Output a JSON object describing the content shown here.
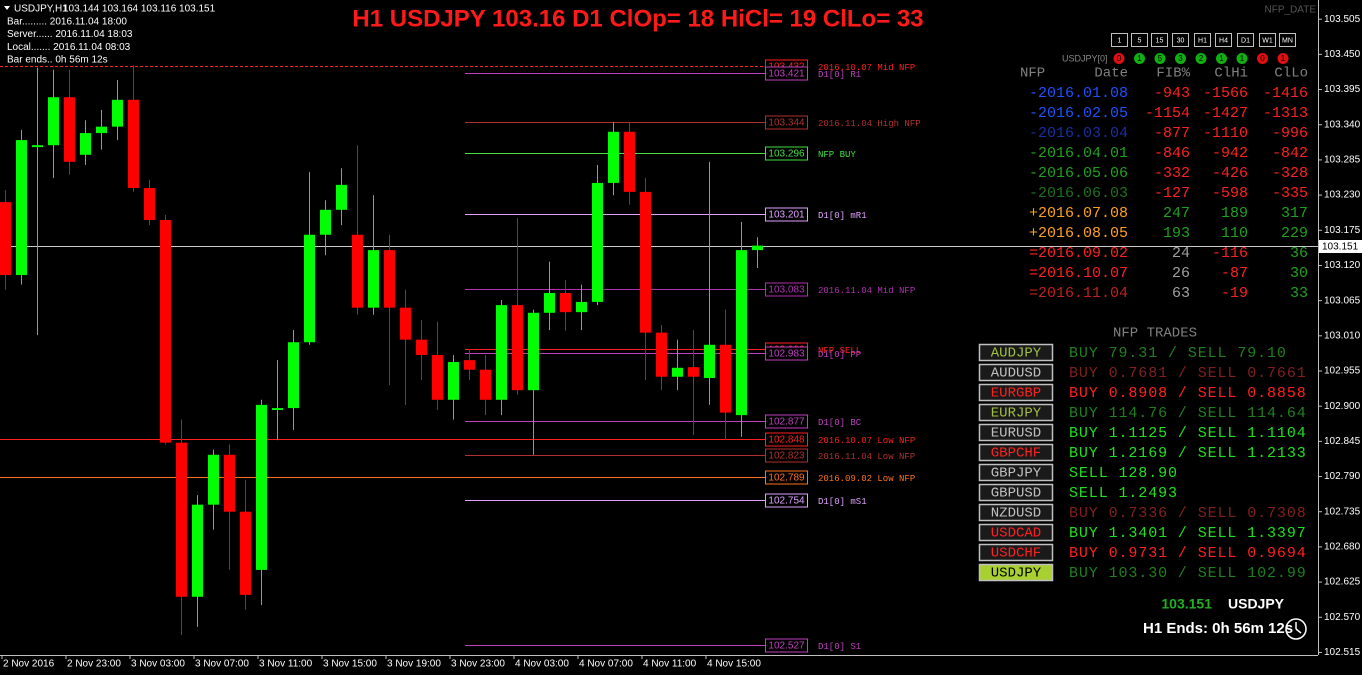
{
  "chart_data": {
    "type": "candlestick",
    "title": "H1 USDJPY 103.16 D1 ClOp= 18 HiCl= 19 ClLo= 33",
    "categories": [
      "2 Nov 2016",
      null,
      null,
      null,
      "2 Nov 23:00",
      null,
      null,
      null,
      "3 Nov 03:00",
      null,
      null,
      null,
      "3 Nov 07:00",
      null,
      null,
      null,
      "3 Nov 11:00",
      null,
      null,
      null,
      "3 Nov 15:00",
      null,
      null,
      null,
      "3 Nov 19:00",
      null,
      null,
      null,
      "3 Nov 23:00",
      null,
      null,
      null,
      "4 Nov 03:00",
      null,
      null,
      null,
      "4 Nov 07:00",
      null,
      null,
      null,
      "4 Nov 11:00",
      null,
      null,
      null,
      "4 Nov 15:00",
      null,
      null,
      null
    ],
    "open": [
      103.219,
      103.105,
      103.305,
      103.308,
      103.383,
      103.293,
      103.327,
      103.337,
      103.379,
      103.241,
      103.191,
      102.843,
      102.602,
      102.746,
      102.824,
      102.735,
      102.644,
      102.894,
      102.897,
      103.0,
      103.168,
      103.207,
      103.168,
      103.054,
      103.144,
      103.054,
      103.004,
      102.98,
      102.91,
      102.972,
      102.957,
      102.91,
      103.058,
      102.925,
      103.046,
      103.077,
      103.047,
      103.063,
      103.249,
      103.329,
      103.235,
      103.015,
      102.946,
      102.961,
      102.944,
      102.996,
      102.886,
      103.144
    ],
    "high": [
      103.238,
      103.332,
      103.429,
      103.426,
      103.426,
      103.347,
      103.363,
      103.41,
      103.433,
      103.254,
      103.199,
      102.879,
      102.761,
      102.832,
      102.84,
      102.785,
      102.91,
      102.972,
      103.019,
      103.266,
      103.222,
      103.272,
      103.308,
      103.23,
      103.168,
      103.082,
      103.035,
      103.032,
      102.98,
      102.988,
      102.98,
      103.066,
      103.194,
      103.051,
      103.126,
      103.097,
      103.09,
      103.277,
      103.344,
      103.344,
      103.257,
      103.027,
      103.004,
      103.019,
      103.282,
      103.051,
      103.188,
      103.164
    ],
    "low": [
      103.082,
      103.09,
      103.011,
      103.257,
      103.262,
      103.277,
      103.301,
      103.316,
      103.235,
      103.183,
      102.84,
      102.542,
      102.555,
      102.707,
      102.644,
      102.582,
      102.589,
      102.847,
      102.863,
      102.996,
      103.136,
      103.183,
      103.043,
      103.043,
      102.933,
      102.902,
      102.941,
      102.894,
      102.879,
      102.941,
      102.886,
      102.886,
      102.918,
      102.824,
      103.019,
      103.018,
      103.019,
      103.058,
      103.23,
      103.215,
      102.941,
      102.925,
      102.925,
      102.855,
      102.902,
      102.847,
      102.852,
      103.116
    ],
    "close": [
      103.105,
      103.316,
      103.308,
      103.383,
      103.282,
      103.327,
      103.337,
      103.379,
      103.241,
      103.191,
      102.843,
      102.602,
      102.746,
      102.824,
      102.735,
      102.605,
      102.902,
      102.897,
      103.0,
      103.168,
      103.207,
      103.246,
      103.054,
      103.144,
      103.054,
      103.004,
      102.98,
      102.91,
      102.969,
      102.957,
      102.91,
      103.058,
      102.925,
      103.046,
      103.077,
      103.047,
      103.063,
      103.249,
      103.329,
      103.235,
      103.015,
      102.946,
      102.96,
      102.946,
      102.996,
      102.89,
      103.144,
      103.151
    ],
    "up_color": "#00ff00",
    "down_color": "#ff0000",
    "ylim": [
      102.511,
      103.535
    ],
    "yticks": [
      103.505,
      {
        "value": 103.45,
        "label": "103.450"
      },
      103.395,
      {
        "value": 103.34,
        "label": "103.340"
      },
      103.285,
      {
        "value": 103.23,
        "label": "103.230"
      },
      103.175,
      {
        "value": 103.12,
        "label": "103.120"
      },
      103.065,
      {
        "value": 103.01,
        "label": "103.010"
      },
      102.955,
      {
        "value": 102.9,
        "label": "102.900"
      },
      102.845,
      {
        "value": 102.79,
        "label": "102.790"
      },
      102.735,
      {
        "value": 102.68,
        "label": "102.680"
      },
      102.625,
      {
        "value": 102.57,
        "label": "102.570"
      },
      102.515
    ],
    "bid": 103.151,
    "bid_color": "#c8c8c8",
    "levels": [
      {
        "value": 103.432,
        "text": "2016.10.07 Mid NFP",
        "color": "#ff2020",
        "extent": "full",
        "style": "dash"
      },
      {
        "value": 103.421,
        "text": "D1[0] R1",
        "color": "#c040c0",
        "extent": "segment"
      },
      {
        "value": 103.344,
        "text": "2016.11.04 High NFP",
        "color": "#b03030",
        "extent": "segment"
      },
      {
        "value": 103.296,
        "text": "NFP BUY",
        "color": "#40e040",
        "extent": "segment"
      },
      {
        "value": 103.201,
        "text": "D1[0] mR1",
        "color": "#e0a0ff",
        "extent": "segment"
      },
      {
        "value": 103.083,
        "text": "2016.11.04 Mid NFP",
        "color": "#b030b0",
        "extent": "segment"
      },
      {
        "value": 102.99,
        "label": "102.990",
        "text": "NFP SELL",
        "color": "#ff2020",
        "extent": "segment"
      },
      {
        "value": 102.983,
        "text": "D1[0] PP",
        "color": "#c040c0",
        "extent": "segment"
      },
      {
        "value": 102.877,
        "text": "D1[0] BC",
        "color": "#c040c0",
        "extent": "segment"
      },
      {
        "value": 102.848,
        "text": "2016.10.07 Low NFP",
        "color": "#ff2020",
        "extent": "full"
      },
      {
        "value": 102.823,
        "text": "2016.11.04 Low NFP",
        "color": "#b03030",
        "extent": "segment"
      },
      {
        "value": 102.789,
        "text": "2016.09.02 Low NFP",
        "color": "#ff7020",
        "extent": "full"
      },
      {
        "value": 102.754,
        "text": "D1[0] mS1",
        "color": "#e0a0ff",
        "extent": "segment"
      },
      {
        "value": 102.527,
        "text": "D1[0] S1",
        "color": "#c040c0",
        "extent": "segment"
      }
    ]
  },
  "info": {
    "symbol": "USDJPY,H1",
    "ohlc": "103.144 103.164 103.116 103.151",
    "lines": [
      "Bar......... 2016.11.04 18:00",
      "Server...... 2016.11.04 18:03",
      "Local....... 2016.11.04 08:03",
      "Bar ends.. 0h 56m 12s"
    ]
  },
  "indicator_name": "NFP_DATE",
  "timeframes": [
    "1",
    "5",
    "15",
    "30",
    "H1",
    "H4",
    "D1",
    "W1",
    "MN"
  ],
  "strength": {
    "label": "USDJPY[0]",
    "dots": [
      {
        "text": "0",
        "color": "#e01010"
      },
      {
        "text": "1",
        "color": "#10b010"
      },
      {
        "text": "5",
        "color": "#10b010"
      },
      {
        "text": "3",
        "color": "#10b010"
      },
      {
        "text": "2",
        "color": "#10b010"
      },
      {
        "text": "1",
        "color": "#10b010"
      },
      {
        "text": "1",
        "color": "#10b010"
      },
      {
        "text": "0",
        "color": "#e01010"
      },
      {
        "text": "1",
        "color": "#e01010"
      }
    ]
  },
  "nfp_table": {
    "header": [
      "NFP",
      "Date",
      "FIB%",
      "ClHi",
      "ClLo"
    ],
    "header_color": "#808080",
    "rows": [
      {
        "cells": [
          "-2016.01.08",
          "-943",
          "-1566",
          "-1416"
        ],
        "colors": [
          "#1e50ff",
          "#ff2020",
          "#ff2020",
          "#ff2020"
        ]
      },
      {
        "cells": [
          "-2016.02.05",
          "-1154",
          "-1427",
          "-1313"
        ],
        "colors": [
          "#1e50ff",
          "#ff2020",
          "#ff2020",
          "#ff2020"
        ]
      },
      {
        "cells": [
          "-2016.03.04",
          "-877",
          "-1110",
          "-996"
        ],
        "colors": [
          "#1a2fa0",
          "#ff2020",
          "#ff2020",
          "#ff2020"
        ]
      },
      {
        "cells": [
          "-2016.04.01",
          "-846",
          "-942",
          "-842"
        ],
        "colors": [
          "#20a020",
          "#ff2020",
          "#ff2020",
          "#ff2020"
        ]
      },
      {
        "cells": [
          "-2016.05.06",
          "-332",
          "-426",
          "-328"
        ],
        "colors": [
          "#20a020",
          "#ff2020",
          "#ff2020",
          "#ff2020"
        ]
      },
      {
        "cells": [
          "-2016.06.03",
          "-127",
          "-598",
          "-335"
        ],
        "colors": [
          "#207020",
          "#ff2020",
          "#ff2020",
          "#ff2020"
        ]
      },
      {
        "cells": [
          "+2016.07.08",
          "247",
          "189",
          "317"
        ],
        "colors": [
          "#ffa020",
          "#20a020",
          "#20a020",
          "#20a020"
        ]
      },
      {
        "cells": [
          "+2016.08.05",
          "193",
          "110",
          "229"
        ],
        "colors": [
          "#ffa020",
          "#20a020",
          "#20a020",
          "#20a020"
        ]
      },
      {
        "cells": [
          "=2016.09.02",
          "24",
          "-116",
          "36"
        ],
        "colors": [
          "#ff2020",
          "#a0a0a0",
          "#ff2020",
          "#20a020"
        ]
      },
      {
        "cells": [
          "=2016.10.07",
          "26",
          "-87",
          "30"
        ],
        "colors": [
          "#ff2020",
          "#a0a0a0",
          "#ff2020",
          "#20a020"
        ]
      },
      {
        "cells": [
          "=2016.11.04",
          "63",
          "-19",
          "33"
        ],
        "colors": [
          "#c02020",
          "#a0a0a0",
          "#ff2020",
          "#20a020"
        ]
      }
    ]
  },
  "trades": {
    "title": "NFP TRADES",
    "rows": [
      {
        "symbol": "AUDJPY",
        "text": "BUY 79.31 / SELL 79.10",
        "color": "#208020",
        "symbol_color": "#a0c040",
        "fill": "#1a1a1a"
      },
      {
        "symbol": "AUDUSD",
        "text": "BUY 0.7681 / SELL 0.7661",
        "color": "#802020",
        "symbol_color": "#c0c0c0",
        "fill": "#1a1a1a"
      },
      {
        "symbol": "EURGBP",
        "text": "BUY 0.8908 / SELL 0.8858",
        "color": "#ff2020",
        "symbol_color": "#ff2020",
        "fill": "#1a1a1a"
      },
      {
        "symbol": "EURJPY",
        "text": "BUY 114.76 / SELL 114.64",
        "color": "#208020",
        "symbol_color": "#a0c040",
        "fill": "#1a1a1a"
      },
      {
        "symbol": "EURUSD",
        "text": "BUY 1.1125 / SELL 1.1104",
        "color": "#20e020",
        "symbol_color": "#c0c0c0",
        "fill": "#1a1a1a"
      },
      {
        "symbol": "GBPCHF",
        "text": "BUY 1.2169 / SELL 1.2133",
        "color": "#20e020",
        "symbol_color": "#ff2020",
        "fill": "#1a1a1a"
      },
      {
        "symbol": "GBPJPY",
        "text": "SELL 128.90",
        "color": "#20e020",
        "symbol_color": "#c0c0c0",
        "fill": "#1a1a1a"
      },
      {
        "symbol": "GBPUSD",
        "text": "SELL 1.2493",
        "color": "#20e020",
        "symbol_color": "#c0c0c0",
        "fill": "#1a1a1a"
      },
      {
        "symbol": "NZDUSD",
        "text": "BUY 0.7336 / SELL 0.7308",
        "color": "#802020",
        "symbol_color": "#c0c0c0",
        "fill": "#1a1a1a"
      },
      {
        "symbol": "USDCAD",
        "text": "BUY 1.3401 / SELL 1.3397",
        "color": "#20e020",
        "symbol_color": "#ff2020",
        "fill": "#1a1a1a"
      },
      {
        "symbol": "USDCHF",
        "text": "BUY 0.9731 / SELL 0.9694",
        "color": "#ff2020",
        "symbol_color": "#ff2020",
        "fill": "#1a1a1a"
      },
      {
        "symbol": "USDJPY",
        "text": "BUY 103.30 / SELL 102.99",
        "color": "#208020",
        "symbol_color": "#000000",
        "fill": "#a8d030"
      }
    ]
  },
  "footer": {
    "price": "103.151",
    "symbol": "USDJPY",
    "timer": "H1 Ends: 0h 56m 12s"
  }
}
